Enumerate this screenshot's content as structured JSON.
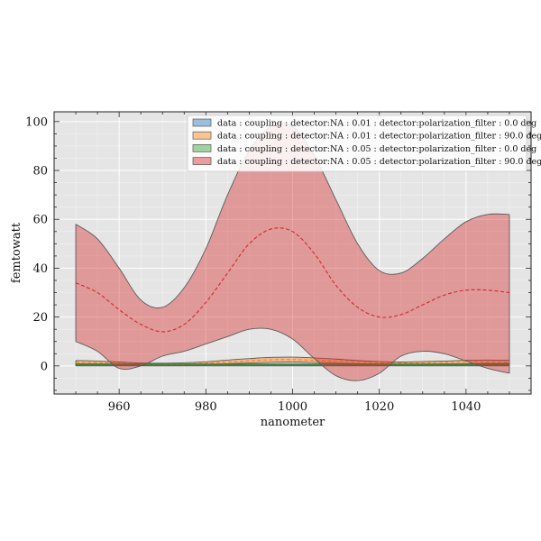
{
  "chart_data": {
    "type": "area",
    "xlabel": "nanometer",
    "ylabel": "femtowatt",
    "xlim": [
      945,
      1055
    ],
    "ylim": [
      -11.5,
      104
    ],
    "xticks": [
      960,
      980,
      1000,
      1020,
      1040
    ],
    "yticks": [
      0,
      20,
      40,
      60,
      80,
      100
    ],
    "grid": true,
    "legend_position": "top-right",
    "x": [
      950,
      955,
      960,
      965,
      970,
      975,
      980,
      985,
      990,
      995,
      1000,
      1005,
      1010,
      1015,
      1020,
      1025,
      1030,
      1035,
      1040,
      1045,
      1050
    ],
    "series": [
      {
        "name": "data : coupling : detector:NA : 0.01 : detector:polarization_filter : 0.0 deg",
        "color": "#1f77b4",
        "mean": [
          0.3,
          0.3,
          0.3,
          0.3,
          0.3,
          0.3,
          0.3,
          0.3,
          0.3,
          0.3,
          0.3,
          0.3,
          0.3,
          0.3,
          0.3,
          0.3,
          0.3,
          0.3,
          0.3,
          0.3,
          0.3
        ],
        "lower": [
          0.1,
          0.1,
          0.1,
          0.1,
          0.1,
          0.1,
          0.1,
          0.1,
          0.1,
          0.1,
          0.1,
          0.1,
          0.1,
          0.1,
          0.1,
          0.1,
          0.1,
          0.1,
          0.1,
          0.1,
          0.1
        ],
        "upper": [
          0.5,
          0.5,
          0.5,
          0.5,
          0.5,
          0.5,
          0.5,
          0.5,
          0.5,
          0.5,
          0.5,
          0.5,
          0.5,
          0.5,
          0.5,
          0.5,
          0.5,
          0.5,
          0.5,
          0.5,
          0.5
        ]
      },
      {
        "name": "data : coupling : detector:NA : 0.01 : detector:polarization_filter : 90.0 deg",
        "color": "#ff7f0e",
        "mean": [
          1.5,
          1.3,
          1.0,
          0.8,
          0.7,
          0.8,
          1.1,
          1.6,
          2.1,
          2.5,
          2.6,
          2.3,
          1.9,
          1.5,
          1.2,
          1.1,
          1.2,
          1.4,
          1.6,
          1.7,
          1.6
        ],
        "lower": [
          0.9,
          0.8,
          0.6,
          0.4,
          0.3,
          0.4,
          0.6,
          0.9,
          1.2,
          1.5,
          1.6,
          1.4,
          1.1,
          0.9,
          0.7,
          0.6,
          0.7,
          0.8,
          0.9,
          1.0,
          1.0
        ],
        "upper": [
          2.2,
          2.0,
          1.6,
          1.2,
          1.1,
          1.3,
          1.7,
          2.4,
          3.0,
          3.5,
          3.6,
          3.3,
          2.8,
          2.2,
          1.8,
          1.6,
          1.8,
          2.0,
          2.3,
          2.4,
          2.3
        ]
      },
      {
        "name": "data : coupling : detector:NA : 0.05 : detector:polarization_filter : 0.0 deg",
        "color": "#2ca02c",
        "mean": [
          0.4,
          0.4,
          0.4,
          0.4,
          0.4,
          0.4,
          0.4,
          0.4,
          0.4,
          0.4,
          0.4,
          0.4,
          0.4,
          0.4,
          0.4,
          0.4,
          0.4,
          0.4,
          0.4,
          0.4,
          0.4
        ],
        "lower": [
          0.0,
          0.0,
          0.0,
          0.0,
          0.0,
          0.0,
          0.0,
          0.0,
          0.0,
          0.0,
          0.0,
          0.0,
          0.0,
          0.0,
          0.0,
          0.0,
          0.0,
          0.0,
          0.0,
          0.0,
          0.0
        ],
        "upper": [
          0.8,
          0.8,
          0.8,
          0.8,
          0.8,
          0.8,
          0.8,
          0.8,
          0.8,
          0.8,
          0.8,
          0.8,
          0.8,
          0.8,
          0.8,
          0.8,
          0.8,
          0.8,
          0.8,
          0.8,
          0.8
        ]
      },
      {
        "name": "data : coupling : detector:NA : 0.05 : detector:polarization_filter : 90.0 deg",
        "color": "#d62728",
        "mean": [
          34,
          30,
          23,
          17,
          14,
          17,
          26,
          38,
          50,
          56,
          55,
          46,
          33,
          24,
          20,
          21,
          25,
          29,
          31,
          31,
          30
        ],
        "lower": [
          10,
          6,
          -1,
          0,
          4,
          6,
          9,
          12,
          15,
          15,
          11,
          3,
          -4,
          -6,
          -3,
          4,
          6,
          5,
          2,
          -1,
          -3
        ],
        "upper": [
          58,
          52,
          40,
          27,
          24,
          32,
          48,
          70,
          88,
          98,
          98,
          86,
          68,
          50,
          39,
          38,
          44,
          52,
          59,
          62,
          62
        ]
      }
    ]
  }
}
